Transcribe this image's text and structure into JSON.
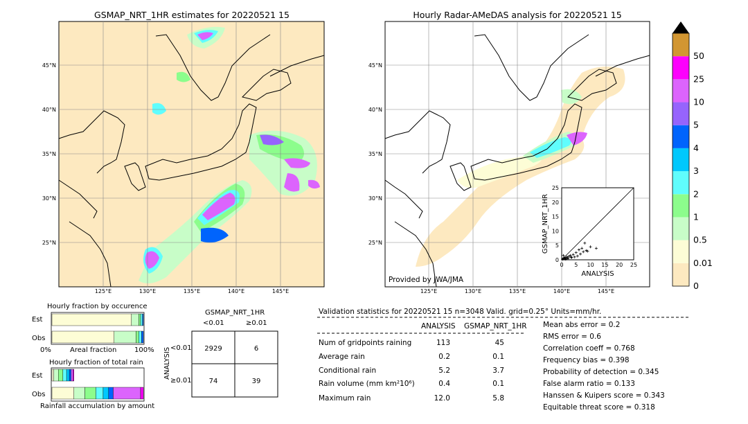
{
  "map_left": {
    "title": "GSMAP_NRT_1HR estimates for 20220521 15",
    "lon_labels": [
      "125°E",
      "130°E",
      "135°E",
      "140°E",
      "145°E"
    ],
    "lat_labels": [
      "45°N",
      "40°N",
      "35°N",
      "30°N",
      "25°N"
    ]
  },
  "map_right": {
    "title": "Hourly Radar-AMeDAS analysis for 20220521 15",
    "lon_labels": [
      "125°E",
      "130°E",
      "135°E",
      "140°E",
      "145°E"
    ],
    "lat_labels": [
      "45°N",
      "40°N",
      "35°N",
      "30°N",
      "25°N"
    ],
    "credit": "Provided by JWA/JMA"
  },
  "colorbar": {
    "levels": [
      "0",
      "0.01",
      "0.5",
      "1",
      "2",
      "3",
      "4",
      "5",
      "10",
      "25",
      "50"
    ],
    "colors": [
      "#fde9c0",
      "#fdfdd6",
      "#c8fdc8",
      "#8cfd8c",
      "#60fdfd",
      "#00c8fd",
      "#0064fd",
      "#9664fd",
      "#dc64fd",
      "#fd00fd",
      "#d29632"
    ]
  },
  "scatter": {
    "xlabel": "ANALYSIS",
    "ylabel": "GSMAP_NRT_1HR",
    "ticks": [
      "0",
      "5",
      "10",
      "15",
      "20",
      "25"
    ]
  },
  "fraction_occurrence": {
    "title": "Hourly fraction by occurence",
    "rows": [
      "Est",
      "Obs"
    ],
    "xlabel_left": "0%",
    "xlabel_mid": "Areal fraction",
    "xlabel_right": "100%"
  },
  "fraction_total": {
    "title": "Hourly fraction of total rain",
    "rows": [
      "Est",
      "Obs"
    ],
    "xlabel": "Rainfall accumulation by amount"
  },
  "contingency": {
    "title": "GSMAP_NRT_1HR",
    "col_labels": [
      "<0.01",
      "≥0.01"
    ],
    "row_axis": "ANALYSIS",
    "row_labels": [
      "<0.01",
      "≥0.01"
    ],
    "cells": [
      [
        "2929",
        "6"
      ],
      [
        "74",
        "39"
      ]
    ]
  },
  "validation": {
    "header": "Validation statistics for 20220521 15  n=3048 Valid. grid=0.25° Units=mm/hr.",
    "col_analysis": "ANALYSIS",
    "col_gsmap": "GSMAP_NRT_1HR",
    "rows": [
      {
        "label": "Num of gridpoints raining",
        "analysis": "113",
        "gsmap": "45"
      },
      {
        "label": "Average rain",
        "analysis": "0.2",
        "gsmap": "0.1"
      },
      {
        "label": "Conditional rain",
        "analysis": "5.2",
        "gsmap": "3.7"
      },
      {
        "label": "Rain volume (mm km²10⁶)",
        "analysis": "0.4",
        "gsmap": "0.1"
      },
      {
        "label": "Maximum rain",
        "analysis": "12.0",
        "gsmap": "5.8"
      }
    ],
    "scores": [
      "Mean abs error =    0.2",
      "RMS error =    0.6",
      "Correlation coeff =  0.768",
      "Frequency bias =  0.398",
      "Probability of detection =  0.345",
      "False alarm ratio =  0.133",
      "Hanssen & Kuipers score =  0.343",
      "Equitable threat score =  0.318"
    ]
  },
  "chart_data": [
    {
      "type": "scatter",
      "title": "",
      "xlabel": "ANALYSIS",
      "ylabel": "GSMAP_NRT_1HR",
      "xlim": [
        0,
        25
      ],
      "ylim": [
        0,
        25
      ],
      "x": [
        0.3,
        0.5,
        0.8,
        1.0,
        1.2,
        1.5,
        1.8,
        2.0,
        2.5,
        3.0,
        3.5,
        4.0,
        4.5,
        5.0,
        5.5,
        6.0,
        6.5,
        7.0,
        7.5,
        8.0,
        8.5,
        9.0,
        10.0,
        12.0,
        0.6,
        1.4,
        2.2,
        3.2
      ],
      "y": [
        0.2,
        0.4,
        0.3,
        0.8,
        0.5,
        0.6,
        1.0,
        0.7,
        1.2,
        1.5,
        0.8,
        1.8,
        1.0,
        2.5,
        1.3,
        3.5,
        2.0,
        4.0,
        2.8,
        5.8,
        3.2,
        3.0,
        4.5,
        4.0,
        1.5,
        0.2,
        0.4,
        0.9
      ]
    },
    {
      "type": "table",
      "title": "GSMAP_NRT_1HR",
      "columns": [
        "<0.01",
        "≥0.01"
      ],
      "rows": [
        "<0.01",
        "≥0.01"
      ],
      "values": [
        [
          2929,
          6
        ],
        [
          74,
          39
        ]
      ]
    },
    {
      "type": "bar",
      "title": "Hourly fraction by occurence",
      "categories": [
        "Est",
        "Obs"
      ],
      "series": [
        {
          "values": [
            0.87,
            0.68
          ]
        },
        {
          "values": [
            0.08,
            0.24
          ]
        },
        {
          "values": [
            0.02,
            0.03
          ]
        },
        {
          "values": [
            0.02,
            0.03
          ]
        },
        {
          "values": [
            0.01,
            0.02
          ]
        }
      ]
    },
    {
      "type": "bar",
      "title": "Hourly fraction of total rain",
      "categories": [
        "Est",
        "Obs"
      ],
      "series": [
        {
          "values": [
            0.02,
            0.24
          ]
        },
        {
          "values": [
            0.05,
            0.12
          ]
        },
        {
          "values": [
            0.05,
            0.12
          ]
        },
        {
          "values": [
            0.04,
            0.08
          ]
        },
        {
          "values": [
            0.03,
            0.06
          ]
        },
        {
          "values": [
            0.02,
            0.05
          ]
        },
        {
          "values": [
            0.02,
            0.3
          ]
        },
        {
          "values": [
            0.01,
            0.03
          ]
        }
      ]
    }
  ]
}
